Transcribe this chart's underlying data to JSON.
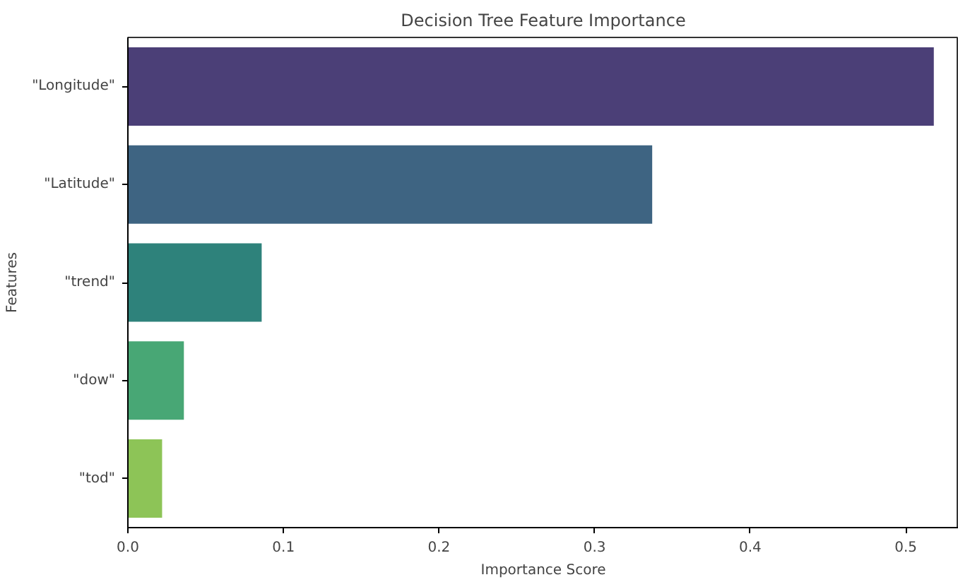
{
  "chart_data": {
    "type": "bar",
    "orientation": "horizontal",
    "title": "Decision Tree Feature Importance",
    "xlabel": "Importance Score",
    "ylabel": "Features",
    "categories": [
      "\"Longitude\"",
      "\"Latitude\"",
      "\"trend\"",
      "\"dow\"",
      "\"tod\""
    ],
    "values": [
      0.518,
      0.337,
      0.086,
      0.036,
      0.022
    ],
    "colors": [
      "#4b3f77",
      "#3e6482",
      "#2e827b",
      "#48a775",
      "#8dc457"
    ],
    "xlim": [
      0,
      0.534
    ],
    "xticks": [
      {
        "value": 0,
        "label": "0.0"
      },
      0.1,
      0.2,
      0.3,
      0.4,
      0.5
    ],
    "grid": false
  }
}
